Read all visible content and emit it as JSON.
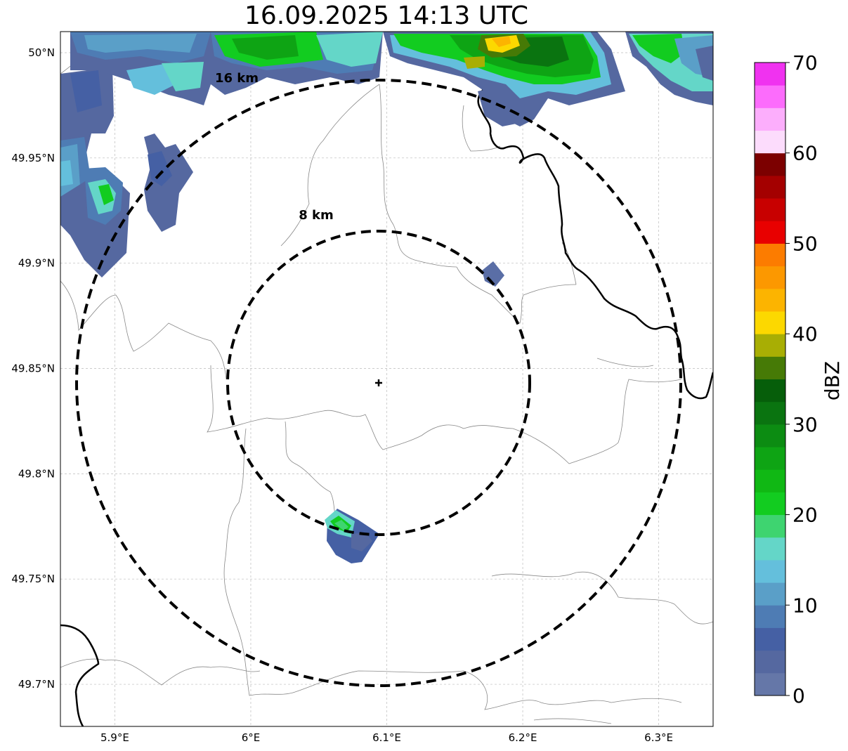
{
  "title": "16.09.2025 14:13 UTC",
  "map": {
    "lon_range": [
      5.86,
      6.34
    ],
    "lat_range": [
      49.68,
      50.01
    ],
    "lon_ticks": [
      {
        "value": 5.9,
        "label": "5.9°E"
      },
      {
        "value": 6.0,
        "label": "6°E"
      },
      {
        "value": 6.1,
        "label": "6.1°E"
      },
      {
        "value": 6.2,
        "label": "6.2°E"
      },
      {
        "value": 6.3,
        "label": "6.3°E"
      }
    ],
    "lat_ticks": [
      {
        "value": 50.0,
        "label": "50°N"
      },
      {
        "value": 49.95,
        "label": "49.95°N"
      },
      {
        "value": 49.9,
        "label": "49.9°N"
      },
      {
        "value": 49.85,
        "label": "49.85°N"
      },
      {
        "value": 49.8,
        "label": "49.8°N"
      },
      {
        "value": 49.75,
        "label": "49.75°N"
      },
      {
        "value": 49.7,
        "label": "49.7°N"
      }
    ],
    "radar_site": {
      "lon": 6.095,
      "lat": 49.843
    },
    "range_rings": [
      {
        "km": 8,
        "label": "8 km"
      },
      {
        "km": 16,
        "label": "16 km"
      }
    ]
  },
  "colorbar": {
    "label": "dBZ",
    "min": 0,
    "max": 70,
    "ticks": [
      {
        "value": 0,
        "label": "0"
      },
      {
        "value": 10,
        "label": "10"
      },
      {
        "value": 20,
        "label": "20"
      },
      {
        "value": 30,
        "label": "30"
      },
      {
        "value": 40,
        "label": "40"
      },
      {
        "value": 50,
        "label": "50"
      },
      {
        "value": 60,
        "label": "60"
      },
      {
        "value": 70,
        "label": "70"
      }
    ],
    "colors": [
      "#6577a8",
      "#5568a0",
      "#4560a4",
      "#4e7cb4",
      "#5a9fc8",
      "#64bfdc",
      "#64d6c8",
      "#3ed470",
      "#12cc20",
      "#10b814",
      "#0ea414",
      "#0c8c12",
      "#0a7410",
      "#065e0a",
      "#467a06",
      "#a8ae04",
      "#fcd800",
      "#fcb400",
      "#fc9800",
      "#fc7c00",
      "#e80000",
      "#c80000",
      "#a40000",
      "#7c0000",
      "#fcdcfc",
      "#fcaefc",
      "#fc6cfc",
      "#f032f0"
    ]
  }
}
